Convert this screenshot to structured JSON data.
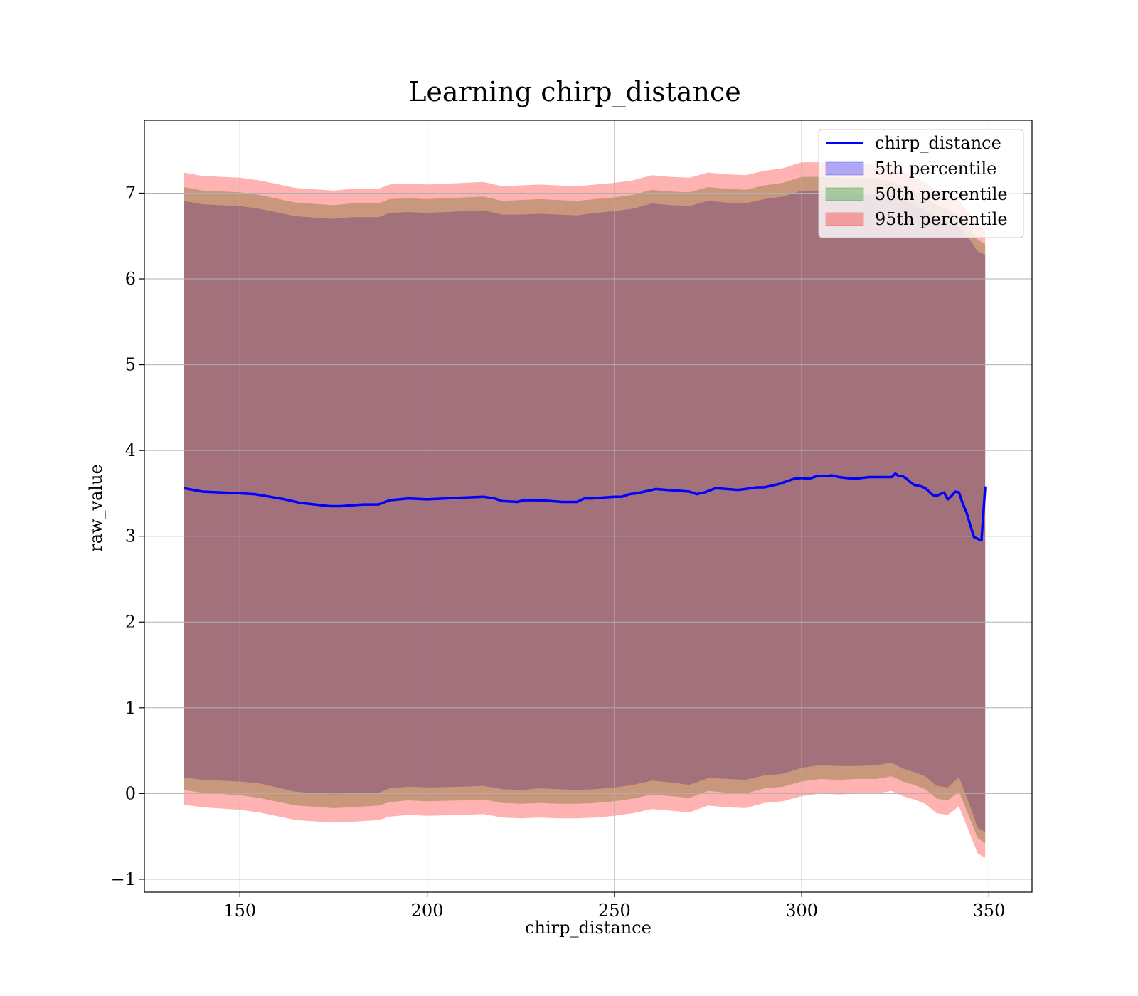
{
  "chart_data": {
    "type": "area",
    "title": "Learning chirp_distance",
    "xlabel": "chirp_distance",
    "ylabel": "raw_value",
    "xlim": [
      124.5,
      361.5
    ],
    "ylim": [
      -1.15,
      7.85
    ],
    "xticks": [
      150,
      200,
      250,
      300,
      350
    ],
    "xtick_labels": [
      "150",
      "200",
      "250",
      "300",
      "350"
    ],
    "yticks": [
      -1,
      0,
      1,
      2,
      3,
      4,
      5,
      6,
      7
    ],
    "ytick_labels": [
      "−1",
      "0",
      "1",
      "2",
      "3",
      "4",
      "5",
      "6",
      "7"
    ],
    "grid": true,
    "legend_position": "top-right",
    "colors": {
      "line": "#0000ff",
      "band_5th": "#0000ff",
      "band_50th": "#008000",
      "band_95th": "#ff0000"
    },
    "line": {
      "name": "chirp_distance",
      "x": [
        135,
        140,
        145,
        150,
        154,
        158,
        162,
        166,
        170,
        174,
        177,
        180,
        183,
        187,
        190,
        195,
        200,
        205,
        210,
        215,
        218,
        220,
        224,
        226,
        230,
        233,
        236,
        240,
        242,
        244,
        247,
        250,
        252,
        254,
        256,
        258,
        261,
        264,
        267,
        270,
        272,
        274,
        277,
        280,
        283,
        285,
        288,
        290,
        292,
        294,
        296,
        298,
        300,
        302,
        304,
        306,
        308,
        310,
        312,
        314,
        316,
        318,
        320,
        322,
        324,
        325,
        326,
        327,
        328,
        329,
        330,
        331,
        332,
        333,
        334,
        335,
        336,
        337,
        338,
        339,
        340,
        341,
        342,
        343,
        344,
        345,
        346,
        347,
        348,
        349
      ],
      "y": [
        3.56,
        3.52,
        3.51,
        3.5,
        3.49,
        3.46,
        3.43,
        3.39,
        3.37,
        3.35,
        3.35,
        3.36,
        3.37,
        3.37,
        3.42,
        3.44,
        3.43,
        3.44,
        3.45,
        3.46,
        3.44,
        3.41,
        3.4,
        3.42,
        3.42,
        3.41,
        3.4,
        3.4,
        3.44,
        3.44,
        3.45,
        3.46,
        3.46,
        3.49,
        3.5,
        3.52,
        3.55,
        3.54,
        3.53,
        3.52,
        3.49,
        3.51,
        3.56,
        3.55,
        3.54,
        3.55,
        3.57,
        3.57,
        3.59,
        3.61,
        3.64,
        3.67,
        3.68,
        3.67,
        3.7,
        3.7,
        3.71,
        3.69,
        3.68,
        3.67,
        3.68,
        3.69,
        3.69,
        3.69,
        3.69,
        3.73,
        3.7,
        3.7,
        3.67,
        3.63,
        3.6,
        3.59,
        3.58,
        3.56,
        3.52,
        3.48,
        3.47,
        3.49,
        3.51,
        3.43,
        3.47,
        3.52,
        3.51,
        3.38,
        3.28,
        3.13,
        2.99,
        2.97,
        2.95,
        3.58
      ]
    },
    "bands": [
      {
        "name": "5th percentile",
        "x": [
          135,
          140,
          150,
          155,
          165,
          175,
          180,
          187,
          190,
          195,
          200,
          210,
          215,
          220,
          225,
          230,
          235,
          240,
          245,
          250,
          255,
          260,
          265,
          270,
          275,
          280,
          285,
          290,
          295,
          300,
          305,
          310,
          315,
          320,
          324,
          327,
          330,
          333,
          336,
          339,
          342,
          345,
          347,
          349
        ],
        "lower": [
          0.19,
          0.16,
          0.14,
          0.12,
          0.02,
          -0.01,
          0.0,
          0.01,
          0.06,
          0.08,
          0.07,
          0.08,
          0.09,
          0.05,
          0.04,
          0.06,
          0.05,
          0.04,
          0.05,
          0.07,
          0.1,
          0.15,
          0.13,
          0.1,
          0.18,
          0.17,
          0.16,
          0.21,
          0.23,
          0.3,
          0.33,
          0.32,
          0.32,
          0.33,
          0.36,
          0.29,
          0.25,
          0.2,
          0.09,
          0.07,
          0.19,
          -0.15,
          -0.4,
          -0.45
        ],
        "upper": [
          6.91,
          6.87,
          6.85,
          6.82,
          6.73,
          6.7,
          6.72,
          6.72,
          6.77,
          6.78,
          6.77,
          6.79,
          6.8,
          6.75,
          6.75,
          6.76,
          6.75,
          6.74,
          6.77,
          6.79,
          6.82,
          6.88,
          6.86,
          6.85,
          6.91,
          6.89,
          6.88,
          6.93,
          6.96,
          7.03,
          7.03,
          7.02,
          7.01,
          7.0,
          6.99,
          6.93,
          6.87,
          6.8,
          6.72,
          6.68,
          6.62,
          6.45,
          6.32,
          6.28
        ]
      },
      {
        "name": "50th percentile",
        "x": [
          135,
          140,
          150,
          155,
          165,
          175,
          180,
          187,
          190,
          195,
          200,
          210,
          215,
          220,
          225,
          230,
          235,
          240,
          245,
          250,
          255,
          260,
          265,
          270,
          275,
          280,
          285,
          290,
          295,
          300,
          305,
          310,
          315,
          320,
          324,
          327,
          330,
          333,
          336,
          339,
          342,
          345,
          347,
          349
        ],
        "lower": [
          0.04,
          0.01,
          -0.02,
          -0.05,
          -0.14,
          -0.17,
          -0.16,
          -0.14,
          -0.1,
          -0.08,
          -0.09,
          -0.08,
          -0.07,
          -0.11,
          -0.12,
          -0.11,
          -0.12,
          -0.12,
          -0.11,
          -0.09,
          -0.06,
          -0.01,
          -0.03,
          -0.05,
          0.03,
          0.01,
          0.0,
          0.06,
          0.08,
          0.14,
          0.17,
          0.16,
          0.17,
          0.17,
          0.2,
          0.14,
          0.1,
          0.05,
          -0.06,
          -0.08,
          0.02,
          -0.3,
          -0.52,
          -0.58
        ],
        "upper": [
          7.07,
          7.03,
          7.01,
          6.98,
          6.89,
          6.86,
          6.88,
          6.88,
          6.93,
          6.94,
          6.93,
          6.95,
          6.96,
          6.91,
          6.92,
          6.93,
          6.92,
          6.91,
          6.93,
          6.95,
          6.98,
          7.04,
          7.02,
          7.01,
          7.07,
          7.05,
          7.04,
          7.09,
          7.12,
          7.19,
          7.19,
          7.18,
          7.17,
          7.16,
          7.14,
          7.08,
          7.02,
          6.95,
          6.86,
          6.81,
          6.74,
          6.58,
          6.46,
          6.4
        ]
      },
      {
        "name": "95th percentile",
        "x": [
          135,
          140,
          150,
          155,
          165,
          175,
          180,
          187,
          190,
          195,
          200,
          210,
          215,
          220,
          225,
          230,
          235,
          240,
          245,
          250,
          255,
          260,
          265,
          270,
          275,
          280,
          285,
          290,
          295,
          300,
          305,
          310,
          315,
          320,
          324,
          327,
          330,
          333,
          336,
          339,
          342,
          345,
          347,
          349
        ],
        "lower": [
          -0.13,
          -0.16,
          -0.19,
          -0.22,
          -0.31,
          -0.34,
          -0.33,
          -0.31,
          -0.27,
          -0.25,
          -0.26,
          -0.25,
          -0.24,
          -0.28,
          -0.29,
          -0.28,
          -0.29,
          -0.29,
          -0.28,
          -0.26,
          -0.23,
          -0.18,
          -0.2,
          -0.22,
          -0.14,
          -0.16,
          -0.17,
          -0.11,
          -0.09,
          -0.03,
          0.0,
          -0.01,
          0.0,
          0.0,
          0.03,
          -0.03,
          -0.07,
          -0.12,
          -0.23,
          -0.25,
          -0.15,
          -0.48,
          -0.7,
          -0.75
        ],
        "upper": [
          7.24,
          7.2,
          7.18,
          7.15,
          7.06,
          7.03,
          7.05,
          7.05,
          7.1,
          7.11,
          7.1,
          7.12,
          7.13,
          7.08,
          7.09,
          7.1,
          7.09,
          7.08,
          7.1,
          7.12,
          7.15,
          7.21,
          7.19,
          7.18,
          7.24,
          7.22,
          7.21,
          7.26,
          7.29,
          7.36,
          7.36,
          7.35,
          7.34,
          7.33,
          7.31,
          7.25,
          7.19,
          7.12,
          7.03,
          6.98,
          6.91,
          6.75,
          6.63,
          6.57
        ]
      }
    ],
    "legend": [
      "chirp_distance",
      "5th percentile",
      "50th percentile",
      "95th percentile"
    ]
  }
}
